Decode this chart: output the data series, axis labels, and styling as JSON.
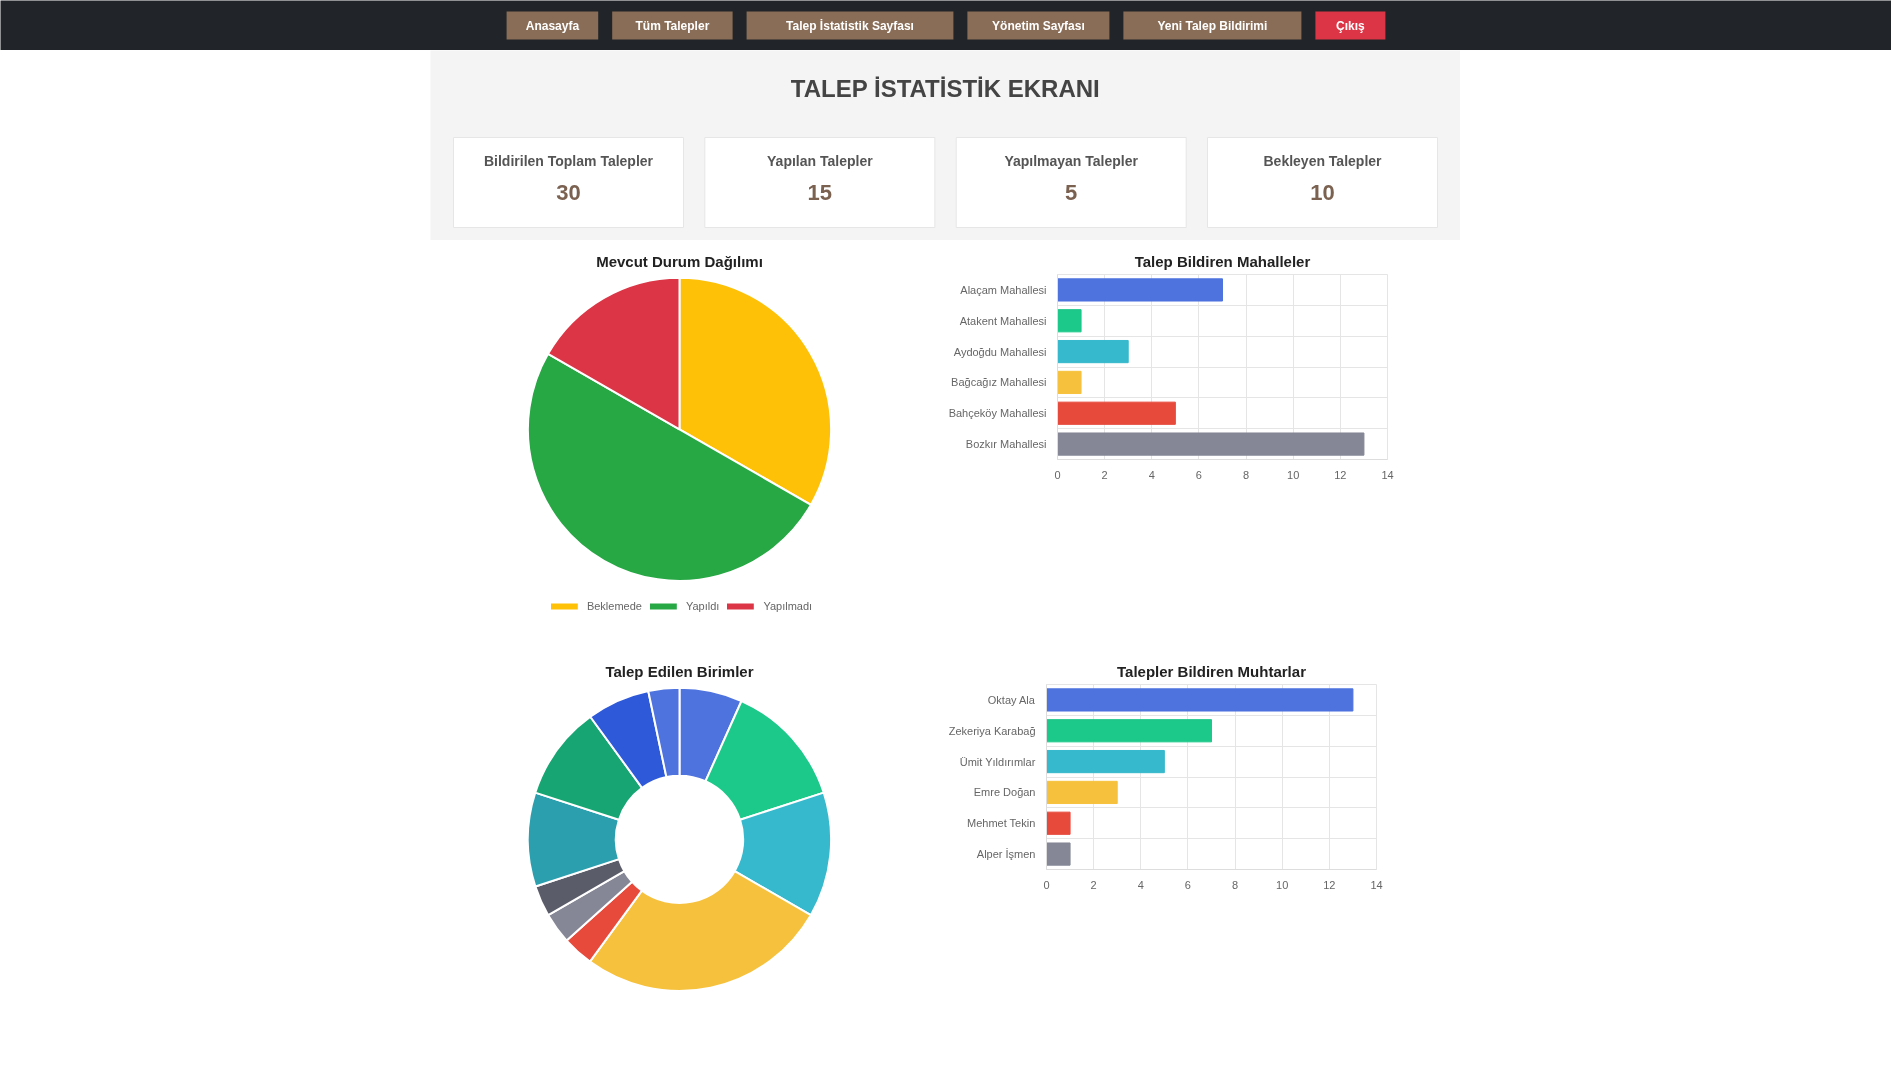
{
  "chart_data": [
    {
      "type": "other",
      "categories": [
        "Anasayfa",
        "Tüm Talepler",
        "Talep İstatistik Sayfası",
        "Yönetim Sayfası",
        "Yeni Talep Bildirimi",
        "Çıkış"
      ],
      "colors": [
        "#8a6d57",
        "#8a6d57",
        "#8a6d57",
        "#8a6d57",
        "#8a6d57",
        "#dc3545"
      ]
    },
    {
      "type": "other",
      "title": "TALEP İSTATİSTİK EKRANI",
      "categories": [
        "Bildirilen Toplam Talepler",
        "Yapılan Talepler",
        "Yapılmayan Talepler",
        "Bekleyen Talepler"
      ],
      "values": [
        30,
        15,
        5,
        10
      ],
      "data_labels": true
    },
    {
      "type": "pie",
      "title": "Mevcut Durum Dağılımı",
      "categories": [
        "Beklemede",
        "Yapıldı",
        "Yapılmadı"
      ],
      "values": [
        33.3,
        50,
        16.7
      ],
      "colors": [
        "#ffc107",
        "#28a745",
        "#dc3545"
      ],
      "legend": "bottom"
    },
    {
      "type": "bar",
      "orientation": "horizontal",
      "title": "Talep Bildiren Mahalleler",
      "categories": [
        "Alaçam Mahallesi",
        "Atakent Mahallesi",
        "Aydoğdu Mahallesi",
        "Bağcağız Mahallesi",
        "Bahçeköy Mahallesi",
        "Bozkır Mahallesi"
      ],
      "values": [
        7,
        1,
        3,
        1,
        5,
        13
      ],
      "colors": [
        "#4e73df",
        "#1cc88a",
        "#36b9cc",
        "#f6c23e",
        "#e74a3b",
        "#858796"
      ],
      "xlim": [
        0,
        14
      ],
      "xticks": [
        0,
        2,
        4,
        6,
        8,
        10,
        12,
        14
      ],
      "grid": true
    },
    {
      "type": "donut",
      "title": "Talep Edilen Birimler",
      "categories": [
        null,
        null,
        null,
        null,
        null,
        null,
        null,
        null,
        null,
        null,
        null
      ],
      "values": [
        6.7,
        13.3,
        13.3,
        26.7,
        3.3,
        3.3,
        3.3,
        10,
        10,
        6.7,
        3.3
      ],
      "colors": [
        "#4e73df",
        "#1cc88a",
        "#36b9cc",
        "#f6c23e",
        "#e74a3b",
        "#858796",
        "#5a5c69",
        "#2c9faf",
        "#17a673",
        "#2e59d9",
        "#4e73df"
      ]
    },
    {
      "type": "bar",
      "orientation": "horizontal",
      "title": "Talepler Bildiren Muhtarlar",
      "categories": [
        "Oktay Ala",
        "Zekeriya Karabağ",
        "Ümit Yıldırımlar",
        "Emre Doğan",
        "Mehmet Tekin",
        "Alper İşmen"
      ],
      "values": [
        13,
        7,
        5,
        3,
        1,
        1
      ],
      "colors": [
        "#4e73df",
        "#1cc88a",
        "#36b9cc",
        "#f6c23e",
        "#e74a3b",
        "#858796"
      ],
      "xlim": [
        0,
        14
      ],
      "xticks": [
        0,
        2,
        4,
        6,
        8,
        10,
        12,
        14
      ],
      "grid": true
    }
  ]
}
